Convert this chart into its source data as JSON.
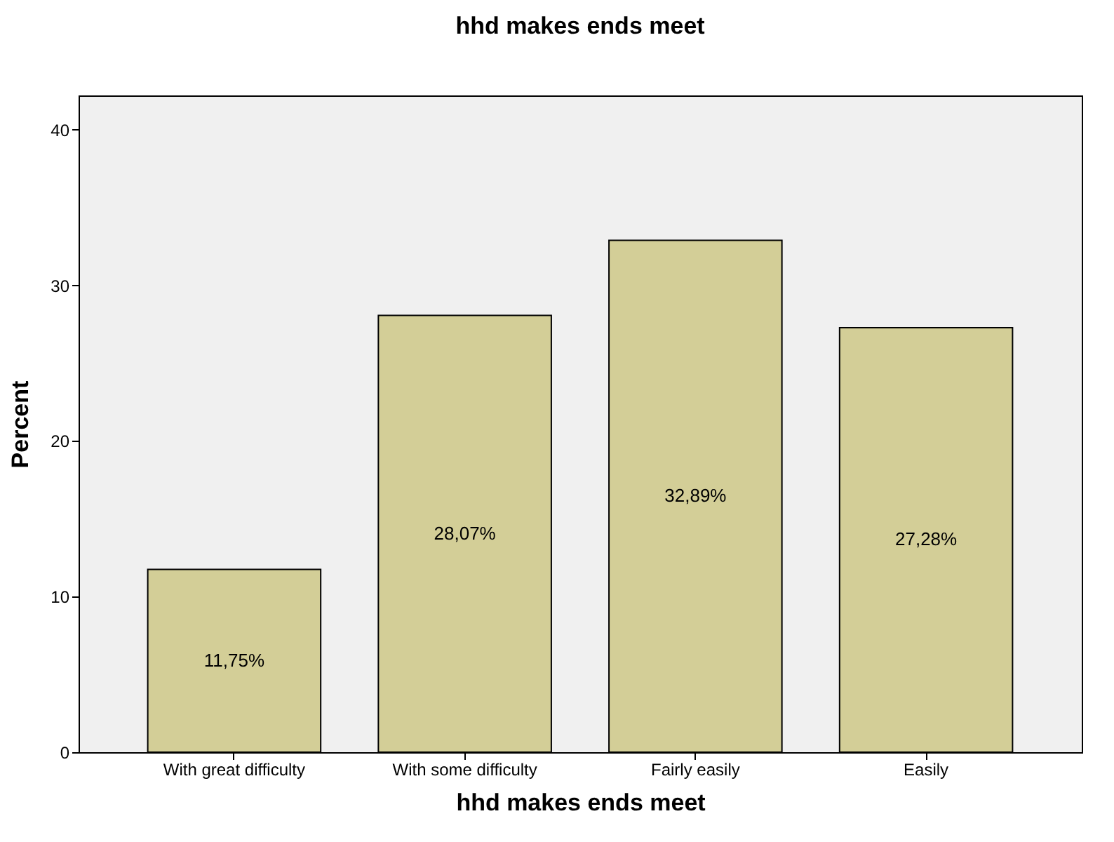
{
  "chart_data": {
    "type": "bar",
    "title": "hhd makes ends meet",
    "xlabel": "hhd makes ends meet",
    "ylabel": "Percent",
    "categories": [
      "With great difficulty",
      "With some difficulty",
      "Fairly easily",
      "Easily"
    ],
    "values": [
      11.75,
      28.07,
      32.89,
      27.28
    ],
    "value_labels": [
      "11,75%",
      "28,07%",
      "32,89%",
      "27,28%"
    ],
    "color": "#d3ce97",
    "ylim": [
      0,
      42.2
    ],
    "yticks": [
      0,
      10,
      20,
      30,
      40
    ],
    "grid": false
  }
}
